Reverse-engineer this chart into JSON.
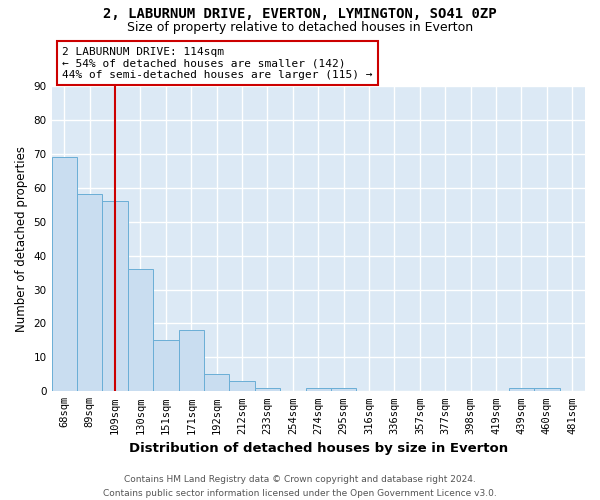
{
  "title1": "2, LABURNUM DRIVE, EVERTON, LYMINGTON, SO41 0ZP",
  "title2": "Size of property relative to detached houses in Everton",
  "xlabel": "Distribution of detached houses by size in Everton",
  "ylabel": "Number of detached properties",
  "footnote": "Contains HM Land Registry data © Crown copyright and database right 2024.\nContains public sector information licensed under the Open Government Licence v3.0.",
  "bin_labels": [
    "68sqm",
    "89sqm",
    "109sqm",
    "130sqm",
    "151sqm",
    "171sqm",
    "192sqm",
    "212sqm",
    "233sqm",
    "254sqm",
    "274sqm",
    "295sqm",
    "316sqm",
    "336sqm",
    "357sqm",
    "377sqm",
    "398sqm",
    "419sqm",
    "439sqm",
    "460sqm",
    "481sqm"
  ],
  "bar_values": [
    69,
    58,
    56,
    36,
    15,
    18,
    5,
    3,
    1,
    0,
    1,
    1,
    0,
    0,
    0,
    0,
    0,
    0,
    1,
    1,
    0
  ],
  "bar_color": "#c9ddf0",
  "bar_edge_color": "#6aaed6",
  "red_line_index": 2,
  "red_line_color": "#cc0000",
  "annotation_text": "2 LABURNUM DRIVE: 114sqm\n← 54% of detached houses are smaller (142)\n44% of semi-detached houses are larger (115) →",
  "annotation_box_color": "#ffffff",
  "annotation_box_edge": "#cc0000",
  "ylim": [
    0,
    90
  ],
  "yticks": [
    0,
    10,
    20,
    30,
    40,
    50,
    60,
    70,
    80,
    90
  ],
  "background_color": "#ffffff",
  "plot_bg_color": "#dce9f5",
  "grid_color": "#ffffff",
  "title1_fontsize": 10,
  "title2_fontsize": 9,
  "xlabel_fontsize": 9.5,
  "ylabel_fontsize": 8.5,
  "tick_fontsize": 7.5,
  "annotation_fontsize": 8,
  "footnote_fontsize": 6.5
}
